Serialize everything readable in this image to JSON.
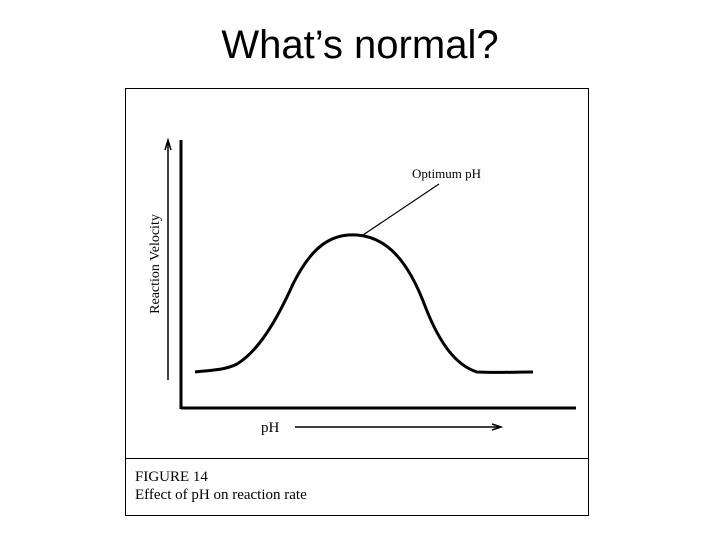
{
  "slide": {
    "title": "What’s normal?"
  },
  "figure": {
    "annotation": "Optimum pH",
    "ylabel": "Reaction Velocity",
    "xlabel": "pH",
    "caption_label": "FIGURE 14",
    "caption_text": "Effect of pH on reaction rate"
  },
  "colors": {
    "ink": "#000000",
    "background": "#ffffff"
  }
}
